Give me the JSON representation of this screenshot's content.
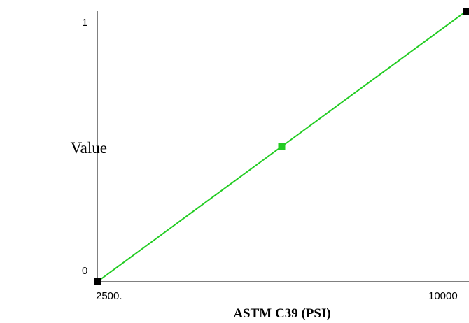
{
  "chart_data": {
    "type": "line",
    "xlabel": "ASTM C39 (PSI)",
    "ylabel": "Value",
    "x_tick_labels": [
      "2500.",
      "10000"
    ],
    "y_tick_labels": [
      "0",
      "1"
    ],
    "xlim": [
      2500,
      10000
    ],
    "ylim": [
      0,
      1
    ],
    "grid": false,
    "series": [
      {
        "x": [
          2500,
          6250,
          10000
        ],
        "y": [
          0,
          0.5,
          1
        ],
        "color": "#22cc22",
        "point_colors": [
          "#000000",
          "#22cc22",
          "#000000"
        ]
      }
    ]
  }
}
